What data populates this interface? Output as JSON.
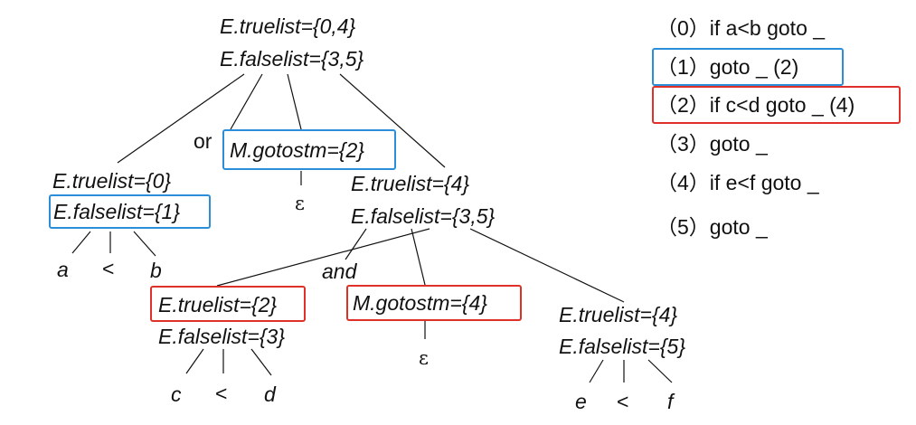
{
  "tree": {
    "root": {
      "truelist": "E.truelist={0,4}",
      "falselist": "E.falselist={3,5}"
    },
    "left": {
      "truelist": "E.truelist={0}",
      "falselist": "E.falselist={1}"
    },
    "left_leaves": [
      "a",
      "<",
      "b"
    ],
    "or_label": "or",
    "m1": {
      "gotostm": "M.gotostm={2}",
      "epsilon": "ε"
    },
    "right": {
      "truelist": "E.truelist={4}",
      "falselist": "E.falselist={3,5}"
    },
    "and_label": "and",
    "rl": {
      "truelist": "E.truelist={2}",
      "falselist": "E.falselist={3}"
    },
    "rl_leaves": [
      "c",
      "<",
      "d"
    ],
    "m2": {
      "gotostm": "M.gotostm={4}",
      "epsilon": "ε"
    },
    "rr": {
      "truelist": "E.truelist={4}",
      "falselist": "E.falselist={5}"
    },
    "rr_leaves": [
      "e",
      "<",
      "f"
    ]
  },
  "code": [
    {
      "num": "（0）",
      "text": "if a<b goto _"
    },
    {
      "num": "（1）",
      "text": "goto  _  (2)"
    },
    {
      "num": "（2）",
      "text": "if c<d goto _   (4)"
    },
    {
      "num": "（3）",
      "text": "goto _"
    },
    {
      "num": "（4）",
      "text": "if e<f goto _"
    },
    {
      "num": "（5）",
      "text": "goto _"
    }
  ],
  "colors": {
    "blue_box": "#2a8fd8",
    "red_box": "#e0302a",
    "edge": "#111111"
  }
}
